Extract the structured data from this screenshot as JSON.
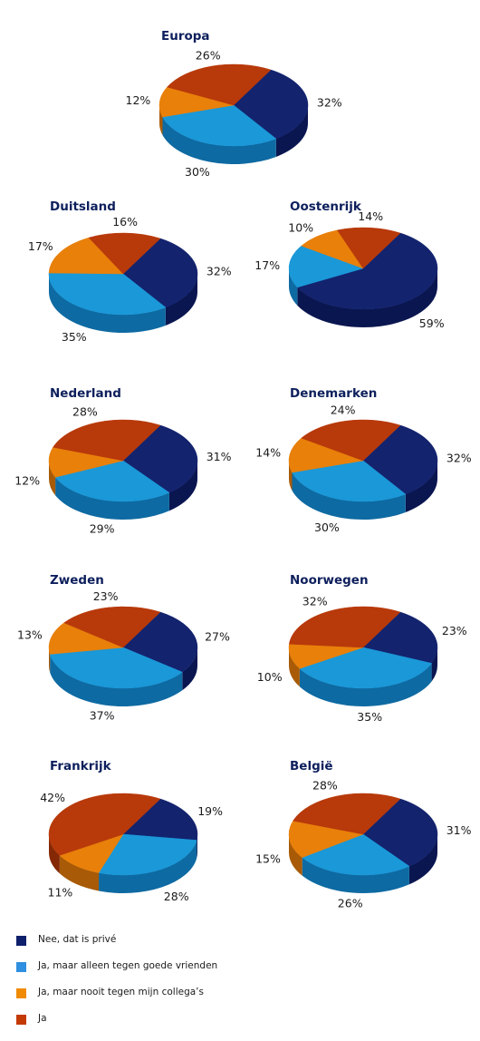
{
  "chart_data": {
    "type": "pie",
    "legend": {
      "placement": "bottom-left",
      "entries": [
        {
          "label": "Nee, dat is privé",
          "color": "#0e1f6b"
        },
        {
          "label": "Ja, maar alleen tegen goede vrienden",
          "color": "#2f8fe0"
        },
        {
          "label": "Ja, maar nooit tegen mijn collega’s",
          "color": "#f08a00"
        },
        {
          "label": "Ja",
          "color": "#c43a05"
        }
      ]
    },
    "series_colors": {
      "top": [
        "#13236e",
        "#1a98d8",
        "#e8800a",
        "#b8390a"
      ],
      "side": [
        "#0a1650",
        "#0e6aa2",
        "#a85a06",
        "#842805"
      ]
    },
    "charts": [
      {
        "title": "Europa",
        "values": [
          32,
          30,
          12,
          26
        ],
        "labels": [
          "32%",
          "30%",
          "12%",
          "26%"
        ]
      },
      {
        "title": "Duitsland",
        "values": [
          32,
          35,
          17,
          16
        ],
        "labels": [
          "32%",
          "35%",
          "17%",
          "16%"
        ]
      },
      {
        "title": "Oostenrijk",
        "values": [
          59,
          17,
          10,
          14
        ],
        "labels": [
          "59%",
          "17%",
          "10%",
          "14%"
        ]
      },
      {
        "title": "Nederland",
        "values": [
          31,
          29,
          12,
          28
        ],
        "labels": [
          "31%",
          "29%",
          "12%",
          "28%"
        ]
      },
      {
        "title": "Denemarken",
        "values": [
          32,
          30,
          14,
          24
        ],
        "labels": [
          "32%",
          "30%",
          "14%",
          "24%"
        ]
      },
      {
        "title": "Zweden",
        "values": [
          27,
          37,
          13,
          23
        ],
        "labels": [
          "27%",
          "37%",
          "13%",
          "23%"
        ]
      },
      {
        "title": "Noorwegen",
        "values": [
          23,
          35,
          10,
          32
        ],
        "labels": [
          "23%",
          "35%",
          "10%",
          "32%"
        ]
      },
      {
        "title": "Frankrijk",
        "values": [
          19,
          28,
          11,
          42
        ],
        "labels": [
          "19%",
          "28%",
          "11%",
          "42%"
        ]
      },
      {
        "title": "België",
        "values": [
          31,
          26,
          15,
          28
        ],
        "labels": [
          "31%",
          "26%",
          "15%",
          "28%"
        ]
      }
    ]
  }
}
